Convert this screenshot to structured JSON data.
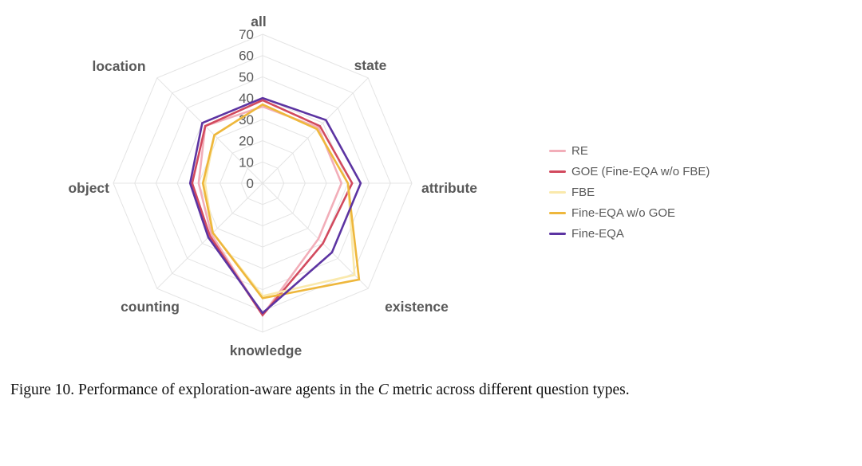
{
  "chart_data": {
    "type": "radar",
    "title": "",
    "categories": [
      "all",
      "state",
      "attribute",
      "existence",
      "knowledge",
      "counting",
      "object",
      "location"
    ],
    "rings": [
      0,
      10,
      20,
      30,
      40,
      50,
      60,
      70
    ],
    "rmax": 70,
    "grid_shape": "octagon",
    "grid_on": true,
    "legend_position": "right",
    "grid_color": "#e4e4e4",
    "label_color": "#595959",
    "series": [
      {
        "name": "RE",
        "color": "#f2aeb9",
        "values": [
          36,
          37,
          37,
          37,
          62,
          34,
          30,
          38
        ]
      },
      {
        "name": "GOE (Fine-EQA w/o FBE)",
        "color": "#d24a5e",
        "values": [
          39,
          38,
          42,
          40,
          62,
          35,
          33,
          38
        ]
      },
      {
        "name": "FBE",
        "color": "#fae9ac",
        "values": [
          37,
          36,
          40,
          61,
          53,
          33,
          27,
          32
        ]
      },
      {
        "name": "Fine-EQA w/o GOE",
        "color": "#eeb73c",
        "values": [
          37,
          36,
          40,
          64,
          54,
          33,
          28,
          32
        ]
      },
      {
        "name": "Fine-EQA",
        "color": "#5c34a2",
        "values": [
          40,
          42,
          46,
          46,
          61,
          36,
          34,
          40
        ]
      }
    ]
  },
  "caption": {
    "prefix": "Figure 10. Performance of exploration-aware agents in the ",
    "metric": "C",
    "suffix": " metric across different question types."
  }
}
